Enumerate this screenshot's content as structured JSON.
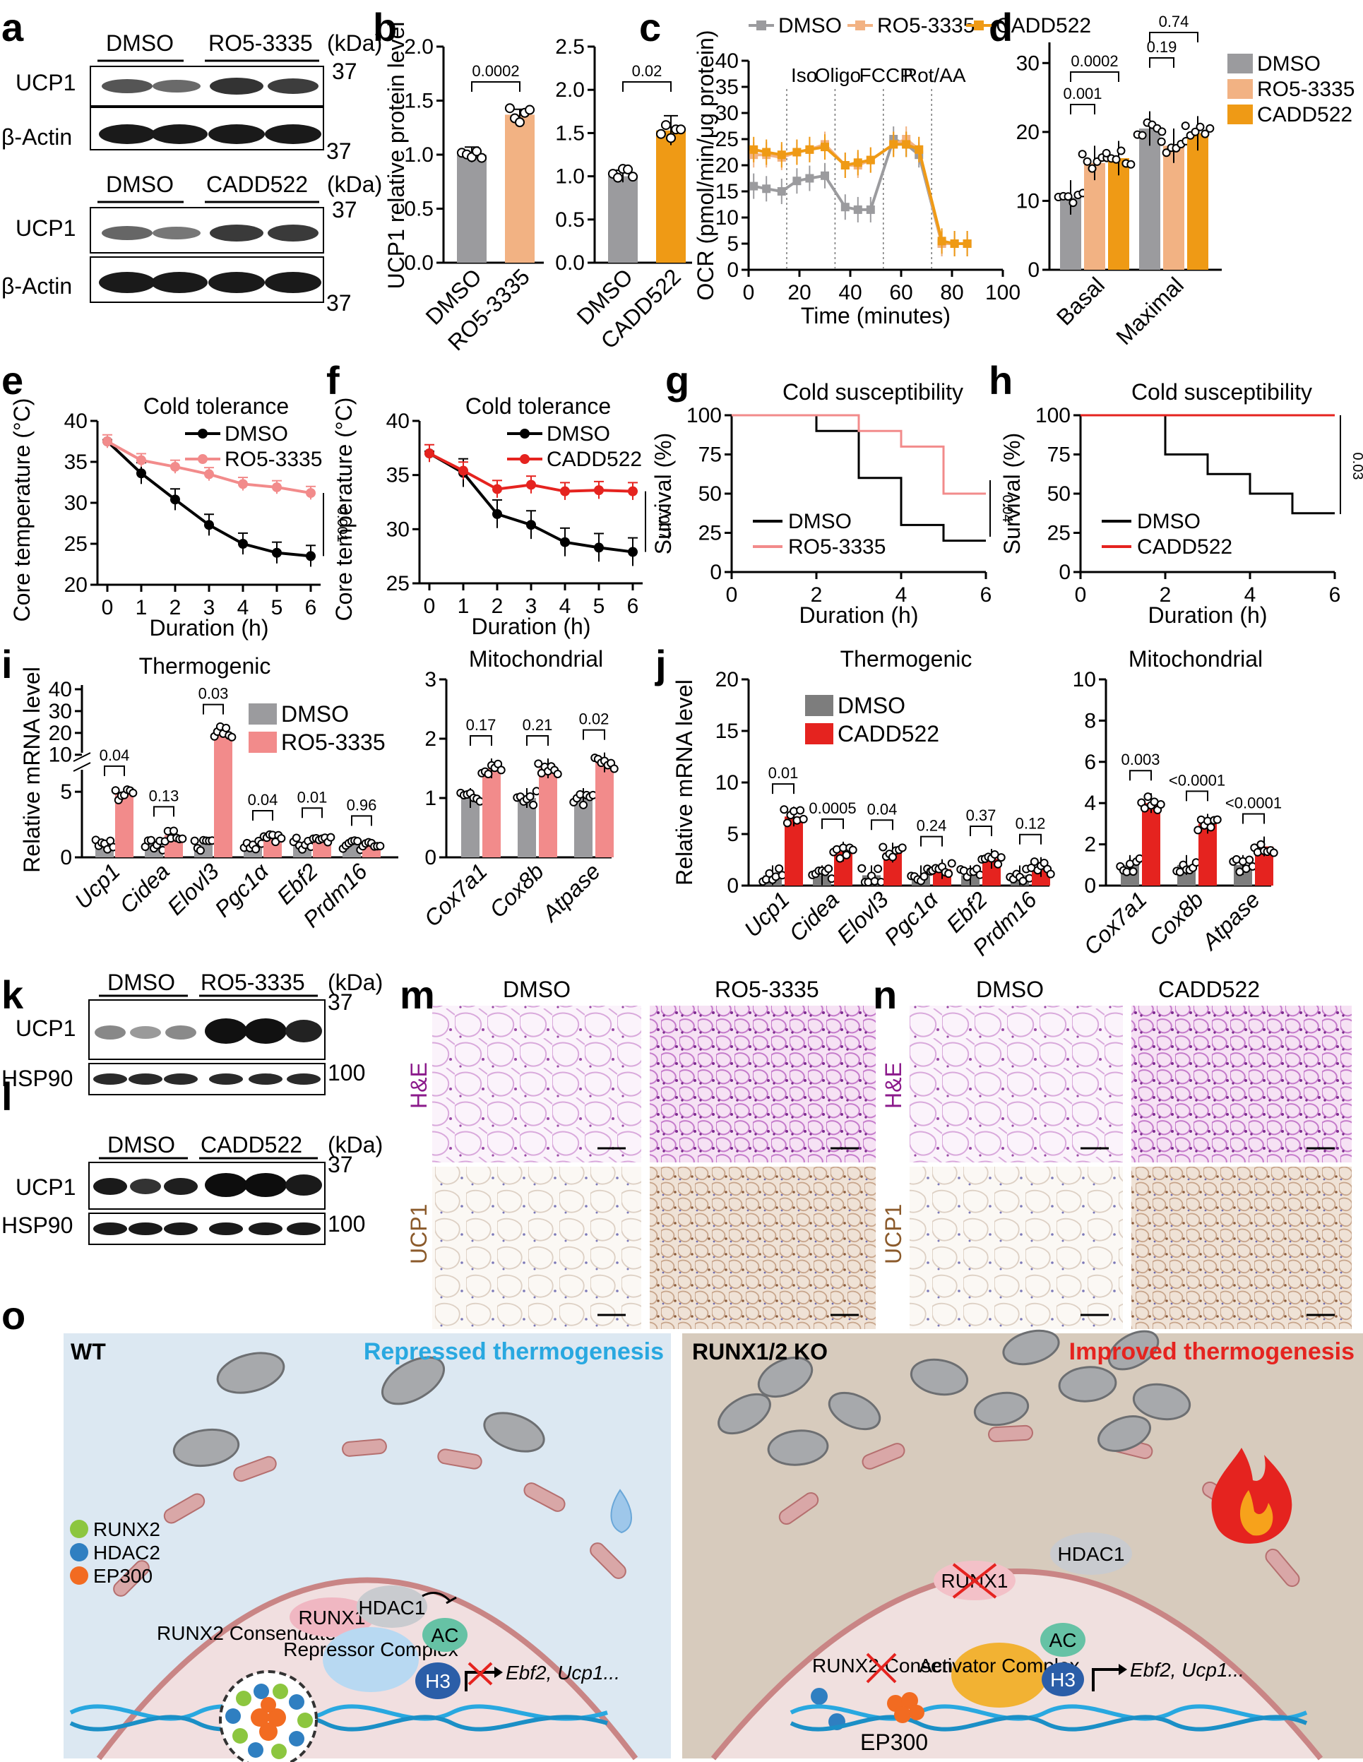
{
  "panels": {
    "a": "a",
    "b": "b",
    "c": "c",
    "d": "d",
    "e": "e",
    "f": "f",
    "g": "g",
    "h": "h",
    "i": "i",
    "j": "j",
    "k": "k",
    "l": "l",
    "m": "m",
    "n": "n",
    "o": "o"
  },
  "colors": {
    "dmso": "#9b9b9e",
    "ro5": "#f2b283",
    "cadd": "#ef9a15",
    "red": "#e5231f",
    "pink": "#f28b8b",
    "black": "#000000",
    "grey_j": "#7d7d7d"
  },
  "blots": {
    "a": {
      "top_groups": [
        "DMSO",
        "RO5-3335"
      ],
      "bottom_groups": [
        "DMSO",
        "CADD522"
      ],
      "kda": "(kDa)",
      "rows": [
        "UCP1",
        "β-Actin"
      ],
      "markers": [
        "37",
        "37"
      ]
    },
    "k": {
      "groups": [
        "DMSO",
        "RO5-3335"
      ],
      "kda": "(kDa)",
      "rows": [
        "UCP1",
        "HSP90"
      ],
      "markers": [
        "37",
        "100"
      ]
    },
    "l": {
      "groups": [
        "DMSO",
        "CADD522"
      ],
      "kda": "(kDa)",
      "rows": [
        "UCP1",
        "HSP90"
      ],
      "markers": [
        "37",
        "100"
      ]
    }
  },
  "chart_data": [
    {
      "id": "b-left",
      "type": "bar",
      "ylabel": "UCP1 relative protein level",
      "categories": [
        "DMSO",
        "RO5-3335"
      ],
      "values": [
        1.0,
        1.37
      ],
      "errors": [
        0.07,
        0.05
      ],
      "yticks": [
        "0.0",
        "0.5",
        "1.0",
        "1.5",
        "2.0"
      ],
      "ylim": [
        0,
        2.0
      ],
      "pvalue": "0.0002"
    },
    {
      "id": "b-right",
      "type": "bar",
      "categories": [
        "DMSO",
        "CADD522"
      ],
      "values": [
        1.0,
        1.53
      ],
      "errors": [
        0.07,
        0.17
      ],
      "yticks": [
        "0.0",
        "0.5",
        "1.0",
        "1.5",
        "2.0",
        "2.5"
      ],
      "ylim": [
        0,
        2.5
      ],
      "pvalue": "0.02"
    },
    {
      "id": "c",
      "type": "line",
      "ylabel": "OCR (pmol/min/μg protein)",
      "xlabel": "Time (minutes)",
      "xticks": [
        "0",
        "20",
        "40",
        "60",
        "80",
        "100"
      ],
      "yticks": [
        "0",
        "5",
        "10",
        "15",
        "20",
        "25",
        "30",
        "35",
        "40"
      ],
      "xlim": [
        0,
        100
      ],
      "ylim": [
        0,
        40
      ],
      "injections": [
        "Iso",
        "Oligo",
        "FCCP",
        "Rot/AA"
      ],
      "x": [
        2,
        7,
        13,
        19,
        24,
        30,
        38,
        43,
        48,
        57,
        62,
        67,
        76,
        81,
        86
      ],
      "series": [
        {
          "name": "DMSO",
          "values": [
            16,
            15.5,
            15,
            17,
            17.5,
            18,
            12,
            11.5,
            11.5,
            25,
            24,
            22,
            5,
            5,
            5
          ]
        },
        {
          "name": "RO5-3335",
          "values": [
            22,
            22,
            21.5,
            22.5,
            23,
            24,
            20,
            20,
            21,
            24,
            25,
            23,
            5,
            5,
            5
          ]
        },
        {
          "name": "CADD522",
          "values": [
            23,
            22.5,
            22,
            22.5,
            23,
            23.5,
            20,
            20.5,
            21,
            24,
            24,
            23,
            5.5,
            5,
            5
          ]
        }
      ]
    },
    {
      "id": "d",
      "type": "bar",
      "categories": [
        "Basal",
        "Maximal"
      ],
      "series": [
        {
          "name": "DMSO",
          "values": [
            10.5,
            20.5
          ]
        },
        {
          "name": "RO5-3335",
          "values": [
            15.5,
            18
          ]
        },
        {
          "name": "CADD522",
          "values": [
            16.2,
            19.8
          ]
        }
      ],
      "yticks": [
        "0",
        "10",
        "20",
        "30"
      ],
      "ylim": [
        0,
        33
      ],
      "pvalues": [
        "0.001",
        "0.0002",
        "0.19",
        "0.74"
      ]
    },
    {
      "id": "e",
      "type": "line",
      "title": "Cold tolerance",
      "ylabel": "Core temperature (°C)",
      "xlabel": "Duration (h)",
      "xticks": [
        "0",
        "1",
        "2",
        "3",
        "4",
        "5",
        "6"
      ],
      "yticks": [
        "20",
        "25",
        "30",
        "35",
        "40"
      ],
      "xlim": [
        0,
        6
      ],
      "ylim": [
        20,
        40
      ],
      "x": [
        0,
        1,
        2,
        3,
        4,
        5,
        6
      ],
      "series": [
        {
          "name": "DMSO",
          "values": [
            37.5,
            33.6,
            30.4,
            27.3,
            25.0,
            23.9,
            23.5
          ]
        },
        {
          "name": "RO5-3335",
          "values": [
            37.5,
            35.2,
            34.4,
            33.5,
            32.3,
            31.9,
            31.2
          ]
        }
      ],
      "pvalue": "0.001"
    },
    {
      "id": "f",
      "type": "line",
      "title": "Cold tolerance",
      "ylabel": "Core temperature (°C)",
      "xlabel": "Duration (h)",
      "xticks": [
        "0",
        "1",
        "2",
        "3",
        "4",
        "5",
        "6"
      ],
      "yticks": [
        "25",
        "30",
        "35",
        "40"
      ],
      "xlim": [
        0,
        6
      ],
      "ylim": [
        25,
        40
      ],
      "x": [
        0,
        1,
        2,
        3,
        4,
        5,
        6
      ],
      "series": [
        {
          "name": "DMSO",
          "values": [
            37.0,
            35.2,
            31.4,
            30.4,
            28.8,
            28.3,
            27.9
          ]
        },
        {
          "name": "CADD522",
          "values": [
            37.0,
            35.4,
            33.7,
            34.1,
            33.5,
            33.6,
            33.5
          ]
        }
      ],
      "pvalue": "0.007"
    },
    {
      "id": "g",
      "type": "line",
      "title": "Cold susceptibility",
      "ylabel": "Survival (%)",
      "xlabel": "Duration (h)",
      "xticks": [
        "0",
        "2",
        "4",
        "6"
      ],
      "yticks": [
        "0",
        "25",
        "50",
        "75",
        "100"
      ],
      "xlim": [
        0,
        6
      ],
      "ylim": [
        0,
        100
      ],
      "series": [
        {
          "name": "DMSO",
          "steps": [
            [
              0,
              100
            ],
            [
              2,
              90
            ],
            [
              3,
              60
            ],
            [
              4,
              30
            ],
            [
              5,
              20
            ],
            [
              6,
              20
            ]
          ]
        },
        {
          "name": "RO5-3335",
          "steps": [
            [
              0,
              100
            ],
            [
              3,
              90
            ],
            [
              4,
              80
            ],
            [
              5,
              50
            ],
            [
              6,
              50
            ]
          ]
        }
      ],
      "pvalue": "0.04"
    },
    {
      "id": "h",
      "type": "line",
      "title": "Cold susceptibility",
      "ylabel": "Survival (%)",
      "xlabel": "Duration (h)",
      "xticks": [
        "0",
        "2",
        "4",
        "6"
      ],
      "yticks": [
        "0",
        "25",
        "50",
        "75",
        "100"
      ],
      "xlim": [
        0,
        6
      ],
      "ylim": [
        0,
        100
      ],
      "series": [
        {
          "name": "DMSO",
          "steps": [
            [
              0,
              100
            ],
            [
              2,
              75
            ],
            [
              3,
              62.5
            ],
            [
              4,
              50
            ],
            [
              5,
              37.5
            ],
            [
              6,
              37.5
            ]
          ]
        },
        {
          "name": "CADD522",
          "steps": [
            [
              0,
              100
            ],
            [
              6,
              100
            ]
          ]
        }
      ],
      "pvalue": "0.03"
    },
    {
      "id": "i-thermo",
      "type": "bar",
      "title": "Thermogenic",
      "ylabel": "Relative mRNA level",
      "categories": [
        "Ucp1",
        "Cidea",
        "Elovl3",
        "Pgc1α",
        "Ebf2",
        "Prdm16"
      ],
      "series": [
        {
          "name": "DMSO",
          "values": [
            1.0,
            1.0,
            1.0,
            1.0,
            1.0,
            1.0
          ]
        },
        {
          "name": "RO5-3335",
          "values": [
            4.8,
            1.7,
            9.5,
            1.4,
            1.6,
            1.0
          ]
        }
      ],
      "yticks_lower": [
        "0",
        "5"
      ],
      "yticks_upper": [
        "10",
        "20",
        "30",
        "40"
      ],
      "pvalues": [
        "0.04",
        "0.13",
        "0.03",
        "0.04",
        "0.01",
        "0.96"
      ]
    },
    {
      "id": "i-mito",
      "type": "bar",
      "title": "Mitochondrial",
      "categories": [
        "Cox7a1",
        "Cox8b",
        "Atpase"
      ],
      "series": [
        {
          "name": "DMSO",
          "values": [
            1.0,
            1.0,
            1.0
          ]
        },
        {
          "name": "RO5-3335",
          "values": [
            1.5,
            1.5,
            1.6
          ]
        }
      ],
      "yticks": [
        "0",
        "1",
        "2",
        "3"
      ],
      "ylim": [
        0,
        3
      ],
      "pvalues": [
        "0.17",
        "0.21",
        "0.02"
      ]
    },
    {
      "id": "j-thermo",
      "type": "bar",
      "title": "Thermogenic",
      "ylabel": "Relative mRNA level",
      "categories": [
        "Ucp1",
        "Cidea",
        "Elovl3",
        "Pgc1α",
        "Ebf2",
        "Prdm16"
      ],
      "series": [
        {
          "name": "DMSO",
          "values": [
            1.0,
            1.0,
            1.0,
            1.0,
            1.0,
            1.0
          ]
        },
        {
          "name": "CADD522",
          "values": [
            6.7,
            3.3,
            3.2,
            1.6,
            2.6,
            1.8
          ]
        }
      ],
      "yticks": [
        "0",
        "5",
        "10",
        "15",
        "20"
      ],
      "ylim": [
        0,
        20
      ],
      "pvalues": [
        "0.01",
        "0.0005",
        "0.04",
        "0.24",
        "0.37",
        "0.12"
      ]
    },
    {
      "id": "j-mito",
      "type": "bar",
      "title": "Mitochondrial",
      "categories": [
        "Cox7a1",
        "Cox8b",
        "Atpase"
      ],
      "series": [
        {
          "name": "DMSO",
          "values": [
            1.0,
            1.0,
            1.0
          ]
        },
        {
          "name": "CADD522",
          "values": [
            4.0,
            3.0,
            1.9
          ]
        }
      ],
      "yticks": [
        "0",
        "2",
        "4",
        "6",
        "8",
        "10"
      ],
      "ylim": [
        0,
        10
      ],
      "pvalues": [
        "0.003",
        "<0.0001",
        "<0.0001"
      ]
    }
  ],
  "histology": {
    "m": {
      "cols": [
        "DMSO",
        "RO5-3335"
      ],
      "rows": [
        "H&E",
        "UCP1"
      ]
    },
    "n": {
      "cols": [
        "DMSO",
        "CADD522"
      ],
      "rows": [
        "H&E",
        "UCP1"
      ]
    }
  },
  "schematic": {
    "left": {
      "label": "WT",
      "status": "Repressed thermogenesis",
      "legend": [
        "RUNX2",
        "HDAC2",
        "EP300"
      ],
      "condensate": "RUNX2 Consendate",
      "runx1": "RUNX1",
      "hdac1": "HDAC1",
      "ac": "AC",
      "h3": "H3",
      "complex": "Repressor Complex",
      "genes": "Ebf2, Ucp1..."
    },
    "right": {
      "label": "RUNX1/2 KO",
      "status": "Improved thermogenesis",
      "runx1": "RUNX1",
      "hdac1": "HDAC1",
      "condensate": "RUNX2 Consendate",
      "ep300": "EP300",
      "ac": "AC",
      "h3": "H3",
      "complex": "Activator Complex",
      "genes": "Ebf2, Ucp1..."
    }
  }
}
